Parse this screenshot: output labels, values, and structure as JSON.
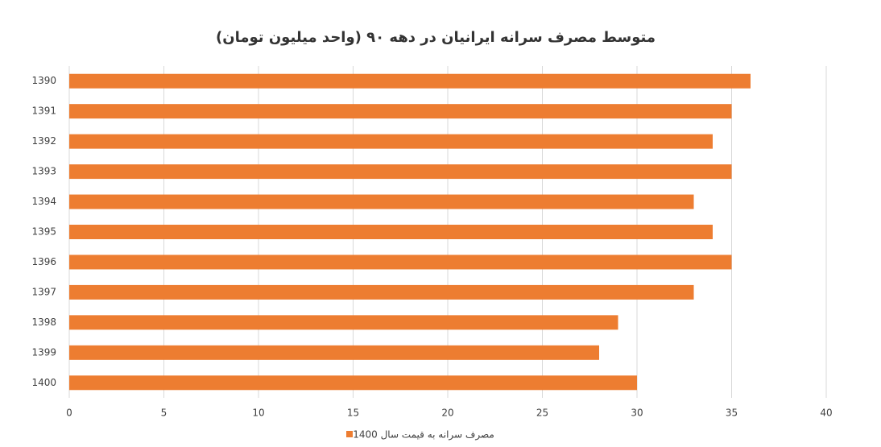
{
  "chart_data": {
    "type": "bar",
    "orientation": "horizontal",
    "title": "متوسط مصرف سرانه ایرانیان در دهه ۹۰ (واحد میلیون تومان)",
    "categories": [
      "1390",
      "1391",
      "1392",
      "1393",
      "1394",
      "1395",
      "1396",
      "1397",
      "1398",
      "1399",
      "1400"
    ],
    "series": [
      {
        "name": "مصرف سرانه به قیمت سال 1400",
        "color": "#ed7d31",
        "values": [
          36,
          35,
          34,
          35,
          33,
          34,
          35,
          33,
          29,
          28,
          30
        ]
      }
    ],
    "xlim": [
      0,
      40
    ],
    "xticks": [
      0,
      5,
      10,
      15,
      20,
      25,
      30,
      35,
      40
    ],
    "grid": true,
    "legend": "bottom"
  }
}
